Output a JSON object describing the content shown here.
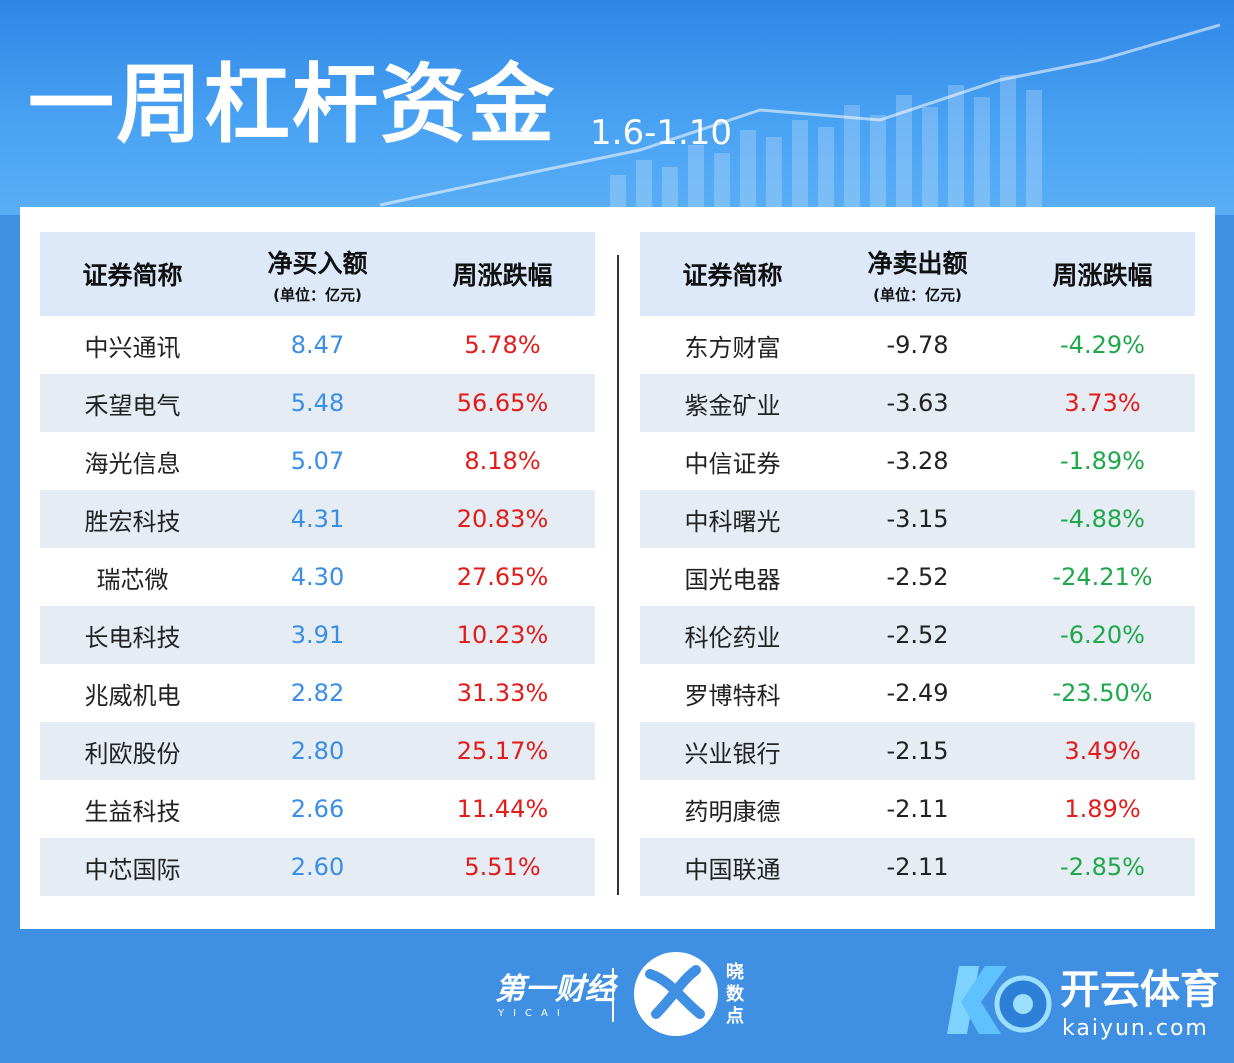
{
  "header": {
    "title": "一周杠杆资金",
    "date_range": "1.6-1.10"
  },
  "colors": {
    "background": "#3f8fe3",
    "header_row": "#dde9f8",
    "stripe": "#e6ecf3",
    "positive": "#e21b1b",
    "negative": "#1ea84b",
    "buy_amount": "#3a8ee6"
  },
  "buy_table": {
    "col_name": "证券简称",
    "col_amount": "净买入额",
    "col_amount_unit": "(单位：亿元)",
    "col_change": "周涨跌幅",
    "rows": [
      {
        "name": "中兴通讯",
        "amount": "8.47",
        "change": "5.78%"
      },
      {
        "name": "禾望电气",
        "amount": "5.48",
        "change": "56.65%"
      },
      {
        "name": "海光信息",
        "amount": "5.07",
        "change": "8.18%"
      },
      {
        "name": "胜宏科技",
        "amount": "4.31",
        "change": "20.83%"
      },
      {
        "name": "瑞芯微",
        "amount": "4.30",
        "change": "27.65%"
      },
      {
        "name": "长电科技",
        "amount": "3.91",
        "change": "10.23%"
      },
      {
        "name": "兆威机电",
        "amount": "2.82",
        "change": "31.33%"
      },
      {
        "name": "利欧股份",
        "amount": "2.80",
        "change": "25.17%"
      },
      {
        "name": "生益科技",
        "amount": "2.66",
        "change": "11.44%"
      },
      {
        "name": "中芯国际",
        "amount": "2.60",
        "change": "5.51%"
      }
    ]
  },
  "sell_table": {
    "col_name": "证券简称",
    "col_amount": "净卖出额",
    "col_amount_unit": "(单位：亿元)",
    "col_change": "周涨跌幅",
    "rows": [
      {
        "name": "东方财富",
        "amount": "-9.78",
        "change": "-4.29%"
      },
      {
        "name": "紫金矿业",
        "amount": "-3.63",
        "change": "3.73%"
      },
      {
        "name": "中信证券",
        "amount": "-3.28",
        "change": "-1.89%"
      },
      {
        "name": "中科曙光",
        "amount": "-3.15",
        "change": "-4.88%"
      },
      {
        "name": "国光电器",
        "amount": "-2.52",
        "change": "-24.21%"
      },
      {
        "name": "科伦药业",
        "amount": "-2.52",
        "change": "-6.20%"
      },
      {
        "name": "罗博特科",
        "amount": "-2.49",
        "change": "-23.50%"
      },
      {
        "name": "兴业银行",
        "amount": "-2.15",
        "change": "3.49%"
      },
      {
        "name": "药明康德",
        "amount": "-2.11",
        "change": "1.89%"
      },
      {
        "name": "中国联通",
        "amount": "-2.11",
        "change": "-2.85%"
      }
    ]
  },
  "footer": {
    "yicai_logo": "第一财经",
    "yicai_sub": "YICAI",
    "xiaoshudian": "晓数点",
    "kaiyun_cn": "开云体育",
    "kaiyun_en": "kaiyun.com"
  }
}
